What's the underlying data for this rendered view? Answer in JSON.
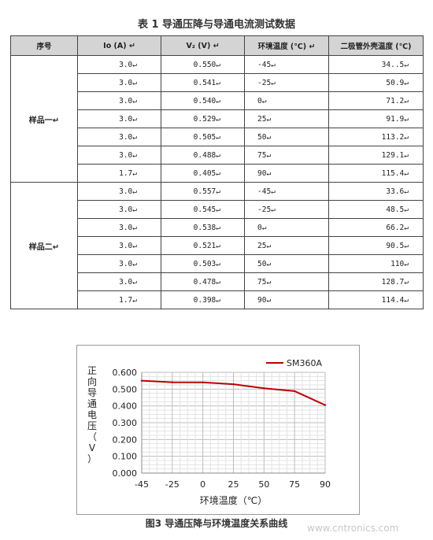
{
  "table": {
    "title": "表 1  导通压降与导通电流测试数据",
    "headers": [
      "序号",
      "Io (A) ↵",
      "V₂ (V) ↵",
      "环境温度 (℃) ↵",
      "二极管外壳温度 (℃)"
    ],
    "groups": [
      {
        "label": "样品一↵",
        "rows": [
          [
            "3.0↵",
            "0.550↵",
            "-45↵",
            "34..5↵"
          ],
          [
            "3.0↵",
            "0.541↵",
            "-25↵",
            "50.9↵"
          ],
          [
            "3.0↵",
            "0.540↵",
            "0↵",
            "71.2↵"
          ],
          [
            "3.0↵",
            "0.529↵",
            "25↵",
            "91.9↵"
          ],
          [
            "3.0↵",
            "0.505↵",
            "50↵",
            "113.2↵"
          ],
          [
            "3.0↵",
            "0.488↵",
            "75↵",
            "129.1↵"
          ],
          [
            "1.7↵",
            "0.405↵",
            "90↵",
            "115.4↵"
          ]
        ]
      },
      {
        "label": "样品二↵",
        "rows": [
          [
            "3.0↵",
            "0.557↵",
            "-45↵",
            "33.6↵"
          ],
          [
            "3.0↵",
            "0.545↵",
            "-25↵",
            "48.5↵"
          ],
          [
            "3.0↵",
            "0.538↵",
            "0↵",
            "66.2↵"
          ],
          [
            "3.0↵",
            "0.521↵",
            "25↵",
            "90.5↵"
          ],
          [
            "3.0↵",
            "0.503↵",
            "50↵",
            "110↵"
          ],
          [
            "3.0↵",
            "0.478↵",
            "75↵",
            "128.7↵"
          ],
          [
            "1.7↵",
            "0.398↵",
            "90↵",
            "114.4↵"
          ]
        ]
      }
    ]
  },
  "chart_data": {
    "type": "line",
    "ylabel": "正向导通电压（V）",
    "xlabel": "环境温度（℃）",
    "x": [
      -45,
      -25,
      0,
      25,
      50,
      75,
      90
    ],
    "xticks": [
      "-45",
      "-25",
      "0",
      "25",
      "50",
      "75",
      "90"
    ],
    "yticks": [
      "0.000",
      "0.100",
      "0.200",
      "0.300",
      "0.400",
      "0.500",
      "0.600"
    ],
    "ylim": [
      0,
      0.6
    ],
    "grid": true,
    "legend_position": "top-right",
    "series": [
      {
        "name": "SM360A",
        "color": "#c00000",
        "values": [
          0.55,
          0.541,
          0.54,
          0.529,
          0.505,
          0.488,
          0.405
        ]
      }
    ]
  },
  "caption": "图3 导通压降与环境温度关系曲线",
  "watermark": "www.cntronics.com"
}
